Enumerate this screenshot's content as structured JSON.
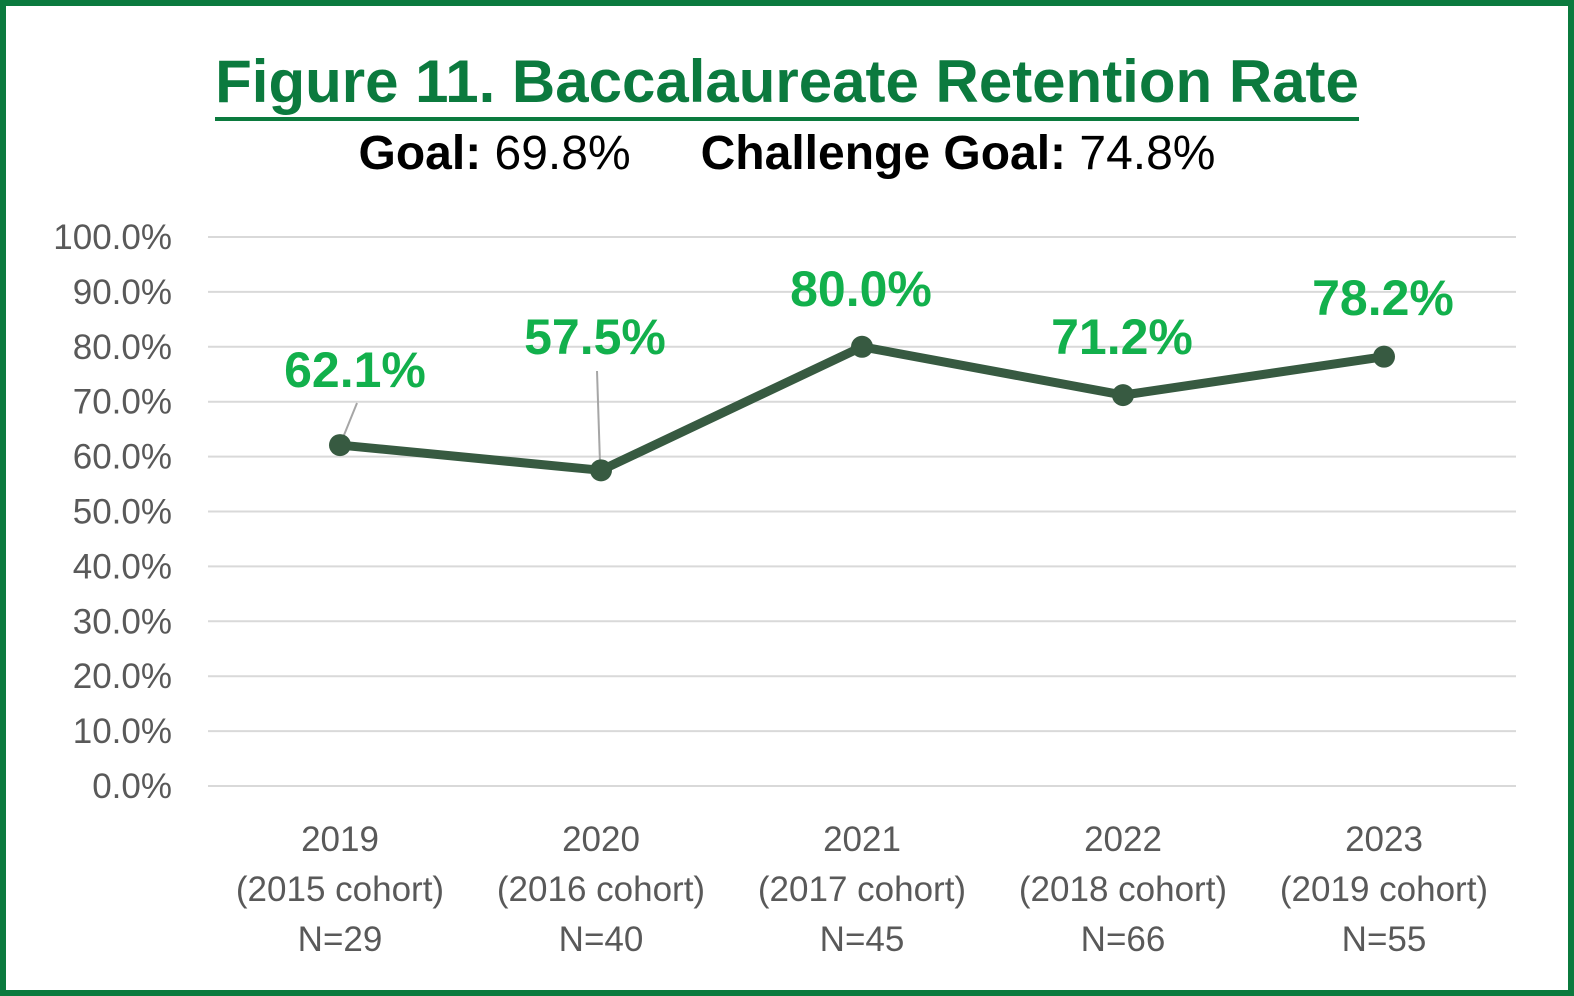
{
  "title": "Figure 11. Baccalaureate Retention Rate",
  "goal": {
    "label": "Goal:",
    "value": "69.8%"
  },
  "challenge_goal": {
    "label": "Challenge Goal:",
    "value": "74.8%"
  },
  "colors": {
    "frame": "#0b7a3e",
    "title": "#0b7a3e",
    "line": "#375a41",
    "data_label": "#12b04c",
    "grid": "#d9d9d9",
    "axis_text": "#595959"
  },
  "chart_data": {
    "type": "line",
    "title": "Figure 11. Baccalaureate Retention Rate",
    "categories": [
      [
        "2019",
        "(2015 cohort)",
        "N=29"
      ],
      [
        "2020",
        "(2016 cohort)",
        "N=40"
      ],
      [
        "2021",
        "(2017 cohort)",
        "N=45"
      ],
      [
        "2022",
        "(2018 cohort)",
        "N=66"
      ],
      [
        "2023",
        "(2019 cohort)",
        "N=55"
      ]
    ],
    "series": [
      {
        "values": [
          62.1,
          57.5,
          80.0,
          71.2,
          78.2
        ]
      }
    ],
    "data_labels": [
      "62.1%",
      "57.5%",
      "80.0%",
      "71.2%",
      "78.2%"
    ],
    "ylim": [
      0,
      100
    ],
    "yticks": [
      0,
      10,
      20,
      30,
      40,
      50,
      60,
      70,
      80,
      90,
      100
    ],
    "ytick_labels": [
      "0.0%",
      "10.0%",
      "20.0%",
      "30.0%",
      "40.0%",
      "50.0%",
      "60.0%",
      "70.0%",
      "80.0%",
      "90.0%",
      "100.0%"
    ],
    "xlabel": "",
    "ylabel": "",
    "grid": true,
    "legend": "none"
  }
}
